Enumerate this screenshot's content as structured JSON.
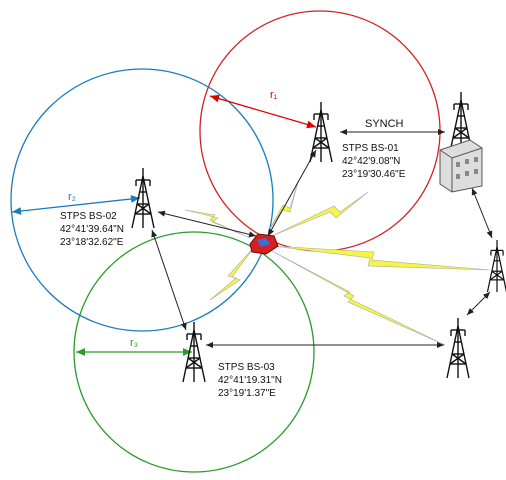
{
  "links": {
    "synch": "SYNCH"
  },
  "radii": {
    "r1": "r₁",
    "r2": "r₂",
    "r3": "r₃"
  },
  "stations": [
    {
      "name": "STPS BS-01",
      "lat": "42°42'9.08\"N",
      "lon": "23°19'30.46\"E"
    },
    {
      "name": "STPS BS-02",
      "lat": "42°41'39.64\"N",
      "lon": "23°18'32.62\"E"
    },
    {
      "name": "STPS BS-03",
      "lat": "42°41'19.31\"N",
      "lon": "23°19'1.37\"E"
    }
  ]
}
